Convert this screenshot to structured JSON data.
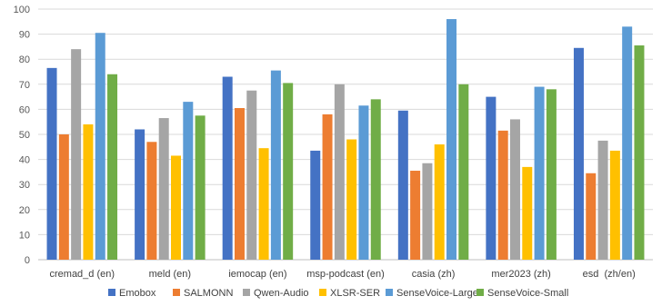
{
  "chart_data": {
    "type": "bar",
    "title": "",
    "xlabel": "",
    "ylabel": "",
    "ylim": [
      0,
      100
    ],
    "yticks": [
      0,
      10,
      20,
      30,
      40,
      50,
      60,
      70,
      80,
      90,
      100
    ],
    "grid": "horizontal",
    "legend_position": "bottom",
    "categories": [
      "cremad_d (en)",
      "meld (en)",
      "iemocap (en)",
      "msp-podcast (en)",
      "casia (zh)",
      "mer2023 (zh)",
      "esd  (zh/en)"
    ],
    "series": [
      {
        "name": "Emobox",
        "color": "#4472c4",
        "values": [
          76.5,
          52.0,
          73.0,
          43.5,
          59.5,
          65.0,
          84.5
        ]
      },
      {
        "name": "SALMONN",
        "color": "#ed7d31",
        "values": [
          50.0,
          47.0,
          60.5,
          58.0,
          35.5,
          51.5,
          34.5
        ]
      },
      {
        "name": "Qwen-Audio",
        "color": "#a5a5a5",
        "values": [
          84.0,
          56.5,
          67.5,
          70.0,
          38.5,
          56.0,
          47.5
        ]
      },
      {
        "name": "XLSR-SER",
        "color": "#ffc000",
        "values": [
          54.0,
          41.5,
          44.5,
          48.0,
          46.0,
          37.0,
          43.5
        ]
      },
      {
        "name": "SenseVoice-Large",
        "color": "#5b9bd5",
        "values": [
          90.5,
          63.0,
          75.5,
          61.5,
          96.0,
          69.0,
          93.0
        ]
      },
      {
        "name": "SenseVoice-Small",
        "color": "#70ad47",
        "values": [
          74.0,
          57.5,
          70.5,
          64.0,
          70.0,
          68.0,
          85.5
        ]
      }
    ]
  }
}
